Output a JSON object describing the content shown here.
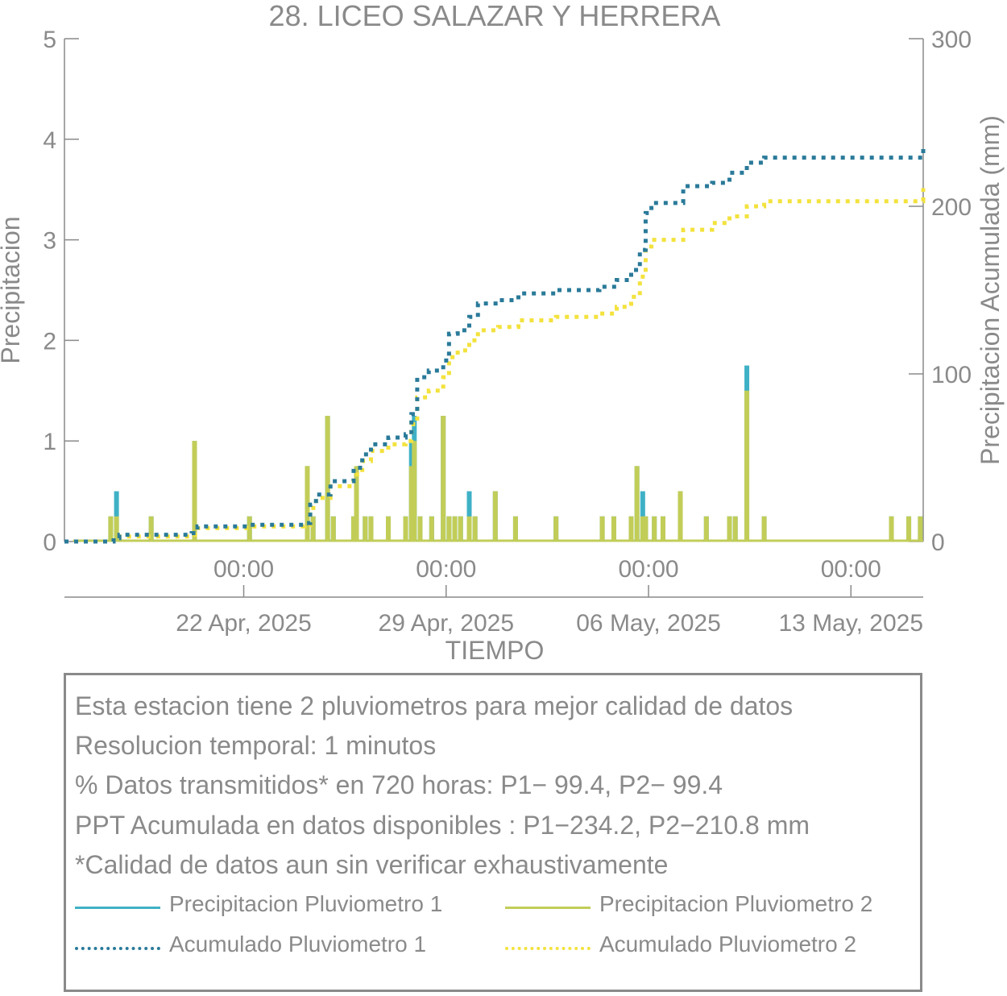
{
  "colors": {
    "p1": "#3fb1c6",
    "p2": "#c2cd58",
    "acc1": "#2a7a99",
    "acc2": "#f3e23d",
    "text": "#8a8a8a",
    "axis": "#8a8a8a"
  },
  "chart_data": {
    "type": "bar",
    "title": "28. LICEO SALAZAR Y HERRERA",
    "xlabel": "TIEMPO",
    "ylabel_left": "Precipitacion",
    "ylabel_right": "Precipitacion Acumulada (mm)",
    "ylim_left": [
      0,
      5
    ],
    "ylim_right": [
      0,
      300
    ],
    "yticks_left": [
      "0",
      "1",
      "2",
      "3",
      "4",
      "5"
    ],
    "yticks_right": [
      "0",
      "100",
      "200",
      "300"
    ],
    "xlim_days": [
      0,
      29.7
    ],
    "xticks": [
      {
        "day": 6.2,
        "time": "00:00",
        "date": "22 Apr, 2025"
      },
      {
        "day": 13.2,
        "time": "00:00",
        "date": "29 Apr, 2025"
      },
      {
        "day": 20.2,
        "time": "00:00",
        "date": "06 May, 2025"
      },
      {
        "day": 27.2,
        "time": "00:00",
        "date": "13 May, 2025"
      }
    ],
    "series": [
      {
        "name": "Precipitacion Pluviometro 1",
        "kind": "bar",
        "points": [
          [
            1.6,
            0.25
          ],
          [
            1.8,
            0.5
          ],
          [
            3.0,
            0.25
          ],
          [
            4.5,
            1.0
          ],
          [
            6.4,
            0.25
          ],
          [
            8.4,
            0.75
          ],
          [
            8.6,
            0.25
          ],
          [
            9.1,
            1.25
          ],
          [
            9.3,
            0.25
          ],
          [
            10.0,
            0.25
          ],
          [
            10.1,
            0.5
          ],
          [
            10.4,
            0.25
          ],
          [
            10.6,
            0.25
          ],
          [
            11.2,
            0.25
          ],
          [
            11.8,
            0.25
          ],
          [
            12.0,
            1.0
          ],
          [
            12.1,
            1.25
          ],
          [
            12.3,
            0.25
          ],
          [
            12.7,
            0.25
          ],
          [
            13.1,
            1.25
          ],
          [
            13.3,
            0.25
          ],
          [
            13.5,
            0.25
          ],
          [
            13.7,
            0.25
          ],
          [
            14.0,
            0.5
          ],
          [
            14.2,
            0.25
          ],
          [
            14.9,
            0.5
          ],
          [
            15.6,
            0.25
          ],
          [
            17.0,
            0.25
          ],
          [
            18.6,
            0.25
          ],
          [
            19.0,
            0.25
          ],
          [
            19.6,
            0.25
          ],
          [
            19.8,
            0.75
          ],
          [
            20.0,
            0.5
          ],
          [
            20.1,
            0.25
          ],
          [
            20.4,
            0.25
          ],
          [
            20.7,
            0.25
          ],
          [
            21.3,
            0.5
          ],
          [
            22.2,
            0.25
          ],
          [
            23.0,
            0.25
          ],
          [
            23.2,
            0.25
          ],
          [
            23.6,
            1.75
          ],
          [
            24.2,
            0.25
          ],
          [
            28.6,
            0.25
          ],
          [
            29.2,
            0.25
          ],
          [
            29.6,
            0.25
          ]
        ]
      },
      {
        "name": "Precipitacion Pluviometro 2",
        "kind": "bar",
        "points": [
          [
            1.6,
            0.25
          ],
          [
            1.8,
            0.25
          ],
          [
            3.0,
            0.25
          ],
          [
            4.5,
            1.0
          ],
          [
            6.4,
            0.25
          ],
          [
            8.4,
            0.75
          ],
          [
            8.6,
            0.25
          ],
          [
            9.1,
            1.25
          ],
          [
            9.3,
            0.25
          ],
          [
            10.0,
            0.25
          ],
          [
            10.1,
            0.75
          ],
          [
            10.4,
            0.25
          ],
          [
            10.6,
            0.25
          ],
          [
            11.2,
            0.25
          ],
          [
            11.8,
            0.25
          ],
          [
            12.0,
            0.75
          ],
          [
            12.1,
            1.0
          ],
          [
            12.3,
            0.25
          ],
          [
            12.7,
            0.25
          ],
          [
            13.1,
            1.25
          ],
          [
            13.3,
            0.25
          ],
          [
            13.5,
            0.25
          ],
          [
            13.7,
            0.25
          ],
          [
            14.0,
            0.25
          ],
          [
            14.2,
            0.25
          ],
          [
            14.9,
            0.5
          ],
          [
            15.6,
            0.25
          ],
          [
            17.0,
            0.25
          ],
          [
            18.6,
            0.25
          ],
          [
            19.0,
            0.25
          ],
          [
            19.6,
            0.25
          ],
          [
            19.8,
            0.75
          ],
          [
            20.0,
            0.25
          ],
          [
            20.1,
            0.25
          ],
          [
            20.4,
            0.25
          ],
          [
            20.7,
            0.25
          ],
          [
            21.3,
            0.5
          ],
          [
            22.2,
            0.25
          ],
          [
            23.0,
            0.25
          ],
          [
            23.2,
            0.25
          ],
          [
            23.6,
            1.5
          ],
          [
            24.2,
            0.25
          ],
          [
            28.6,
            0.25
          ],
          [
            29.2,
            0.25
          ],
          [
            29.6,
            0.25
          ]
        ]
      },
      {
        "name": "Acumulado Pluviometro 1",
        "kind": "line",
        "axis": "right",
        "points": [
          [
            0,
            0
          ],
          [
            1.5,
            0
          ],
          [
            1.7,
            2
          ],
          [
            1.9,
            4
          ],
          [
            4.4,
            5
          ],
          [
            4.6,
            9
          ],
          [
            6.4,
            10
          ],
          [
            8.3,
            11
          ],
          [
            8.5,
            22
          ],
          [
            8.7,
            28
          ],
          [
            9.2,
            36
          ],
          [
            10.0,
            44
          ],
          [
            10.3,
            52
          ],
          [
            10.6,
            58
          ],
          [
            11.2,
            62
          ],
          [
            11.8,
            64
          ],
          [
            12.0,
            76
          ],
          [
            12.2,
            98
          ],
          [
            12.6,
            102
          ],
          [
            13.1,
            108
          ],
          [
            13.3,
            124
          ],
          [
            13.6,
            126
          ],
          [
            14.0,
            134
          ],
          [
            14.3,
            142
          ],
          [
            15.0,
            144
          ],
          [
            15.7,
            148
          ],
          [
            17.0,
            150
          ],
          [
            18.5,
            152
          ],
          [
            19.1,
            156
          ],
          [
            19.6,
            162
          ],
          [
            19.9,
            174
          ],
          [
            20.1,
            196
          ],
          [
            20.3,
            202
          ],
          [
            21.4,
            212
          ],
          [
            22.4,
            214
          ],
          [
            23.0,
            220
          ],
          [
            23.6,
            226
          ],
          [
            24.2,
            229
          ],
          [
            28.6,
            229
          ],
          [
            29.7,
            234.2
          ]
        ]
      },
      {
        "name": "Acumulado Pluviometro 2",
        "kind": "line",
        "axis": "right",
        "points": [
          [
            0,
            0
          ],
          [
            1.5,
            0
          ],
          [
            1.7,
            2
          ],
          [
            1.9,
            3
          ],
          [
            4.4,
            4
          ],
          [
            4.6,
            8
          ],
          [
            6.4,
            9
          ],
          [
            8.3,
            10
          ],
          [
            8.5,
            20
          ],
          [
            8.7,
            26
          ],
          [
            9.2,
            33
          ],
          [
            10.0,
            40
          ],
          [
            10.3,
            48
          ],
          [
            10.6,
            54
          ],
          [
            11.2,
            58
          ],
          [
            11.8,
            60
          ],
          [
            12.0,
            70
          ],
          [
            12.2,
            86
          ],
          [
            12.6,
            90
          ],
          [
            13.1,
            98
          ],
          [
            13.3,
            110
          ],
          [
            13.6,
            114
          ],
          [
            14.0,
            120
          ],
          [
            14.3,
            126
          ],
          [
            15.0,
            128
          ],
          [
            15.7,
            132
          ],
          [
            17.0,
            134
          ],
          [
            18.5,
            136
          ],
          [
            19.1,
            140
          ],
          [
            19.6,
            146
          ],
          [
            19.9,
            158
          ],
          [
            20.1,
            176
          ],
          [
            20.3,
            180
          ],
          [
            21.4,
            186
          ],
          [
            22.4,
            190
          ],
          [
            23.0,
            194
          ],
          [
            23.6,
            200
          ],
          [
            24.2,
            203
          ],
          [
            28.6,
            203
          ],
          [
            29.7,
            210.8
          ]
        ]
      }
    ]
  },
  "info": {
    "line1": "Esta estacion tiene 2 pluviometros para mejor calidad de datos",
    "line2": "Resolucion temporal: 1 minutos",
    "line3": "% Datos transmitidos* en 720 horas: P1− 99.4, P2− 99.4",
    "line4": "PPT Acumulada en datos disponibles : P1−234.2, P2−210.8 mm",
    "line5": "*Calidad de datos aun sin verificar exhaustivamente"
  },
  "legend": {
    "p1": "Precipitacion Pluviometro 1",
    "p2": "Precipitacion Pluviometro 2",
    "acc1": "Acumulado Pluviometro 1",
    "acc2": "Acumulado Pluviometro 2"
  }
}
